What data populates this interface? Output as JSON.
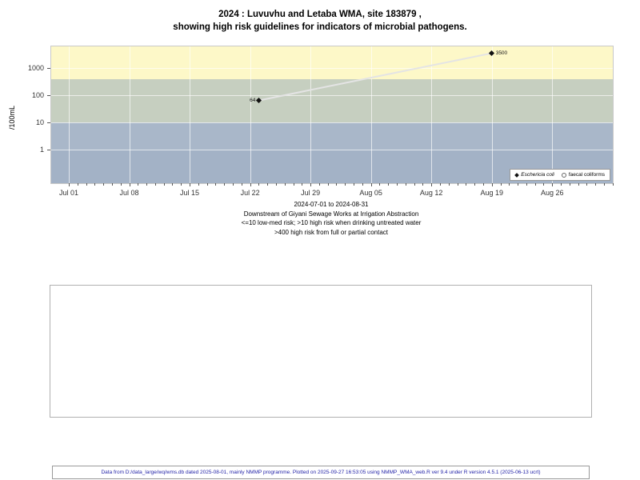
{
  "title": {
    "line1": "2024 : Luvuvhu and Letaba WMA, site 183879 ,",
    "line2": "showing high risk guidelines for indicators of microbial pathogens."
  },
  "chart_data": {
    "type": "scatter",
    "title": "2024 : Luvuvhu and Letaba WMA, site 183879, showing high risk guidelines for indicators of microbial pathogens.",
    "ylabel": "/100mL",
    "y_scale": "log10",
    "y_ticks": [
      1,
      10,
      100,
      1000
    ],
    "x_ticks": [
      "Jul 01",
      "Jul 08",
      "Jul 15",
      "Jul 22",
      "Jul 29",
      "Aug 05",
      "Aug 12",
      "Aug 19",
      "Aug 26"
    ],
    "x_range": "2024-07-01 to 2024-08-31",
    "grid": true,
    "legend_position": "bottom-right",
    "line_color": "#e4e4e4",
    "series": [
      {
        "name": "Eschericia coli",
        "marker": "filled-diamond",
        "points": [
          {
            "x": "Jul 23",
            "y": 64,
            "label": "64",
            "label_side": "left"
          },
          {
            "x": "Aug 19",
            "y": 3500,
            "label": "3500",
            "label_side": "right"
          }
        ]
      },
      {
        "name": "faecal coliforms",
        "marker": "open-circle",
        "points": []
      }
    ],
    "bands": [
      {
        "label": "high risk full or partial contact (>400)",
        "v_lo": 400,
        "v_hi": null,
        "color": "#fdf8c8"
      },
      {
        "label": "high risk drinking untreated water (10-400)",
        "v_lo": 10,
        "v_hi": 400,
        "color": "#c6cfc0"
      },
      {
        "label": "low-med risk (1-10)",
        "v_lo": 1,
        "v_hi": 10,
        "color": "#a9b7c9"
      },
      {
        "label": "below 1",
        "v_lo": null,
        "v_hi": 1,
        "color": "#a3b2c6"
      }
    ]
  },
  "caption": {
    "line1": "2024-07-01 to 2024-08-31",
    "line2": "Downstream of Giyani Sewage Works at Irrigation Abstraction",
    "line3": "<=10 low-med risk; >10 high risk when drinking untreated water",
    "line4": ">400 high risk from full or partial contact"
  },
  "footer": {
    "text": "Data from D:/data_large/wq/wms.db dated 2025-08-01, mainly NMMP programme. Plotted on 2025-09-27 16:53:05 using NMMP_WMA_web.R ver 9.4 under R version 4.5.1 (2025-06-13 ucrt)"
  }
}
